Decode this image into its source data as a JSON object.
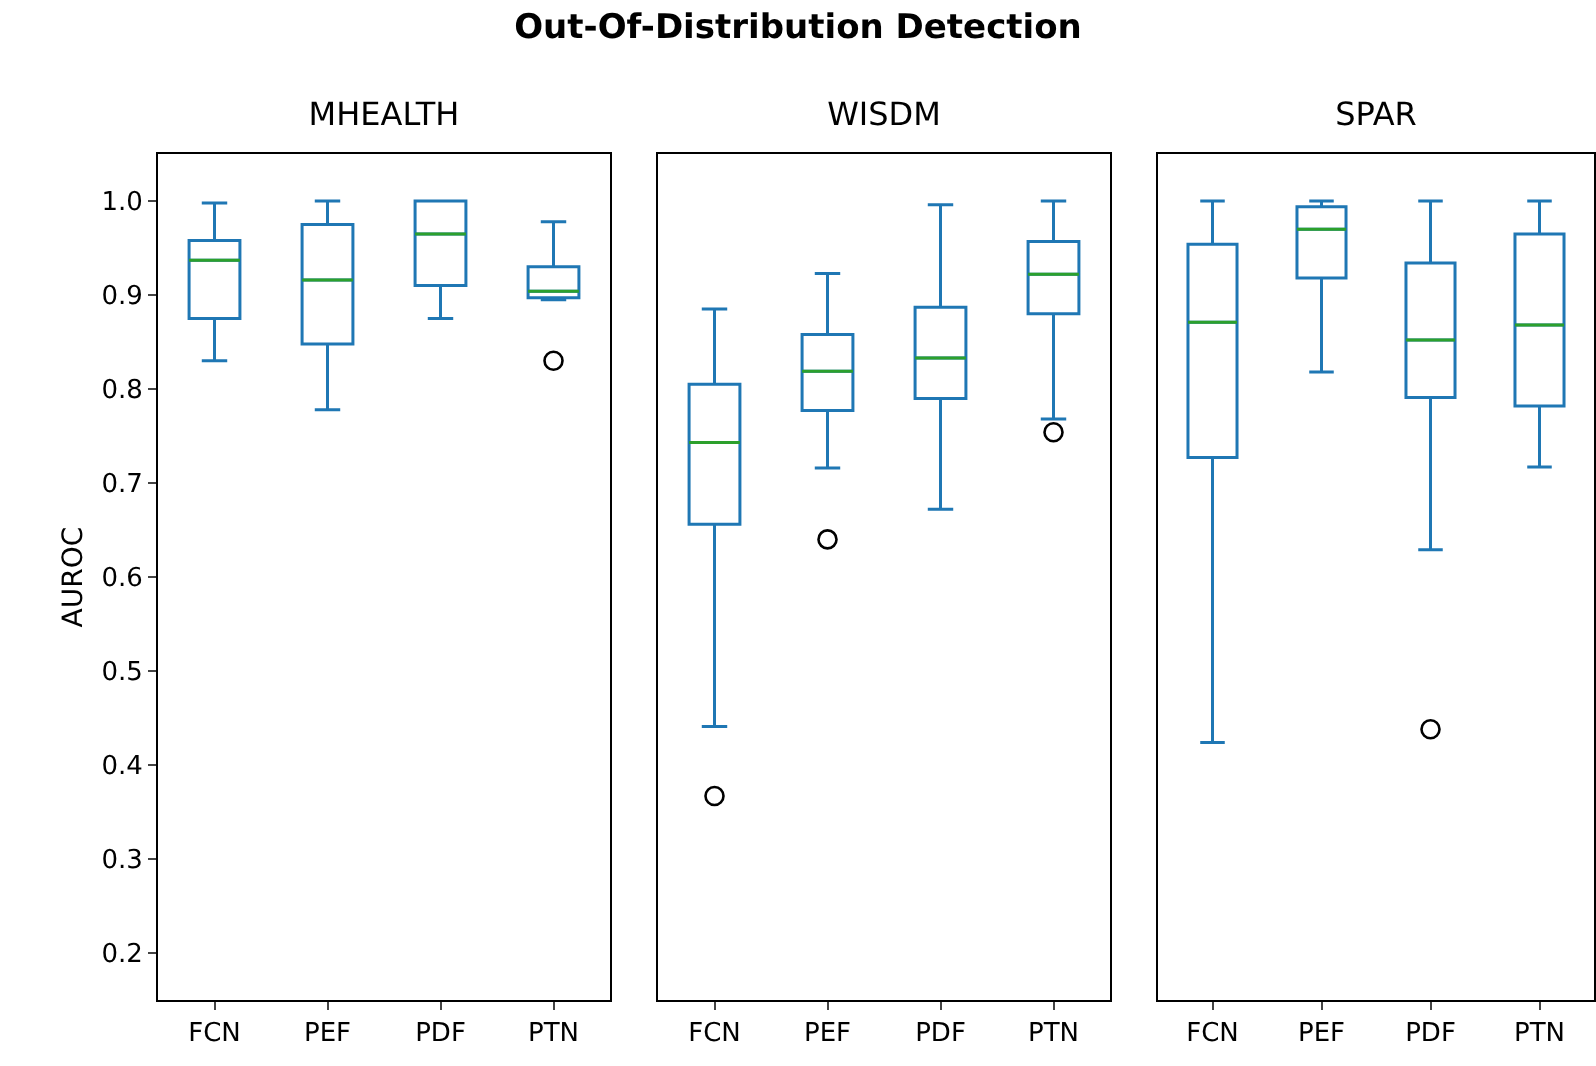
{
  "chart_data": [
    {
      "type": "box",
      "title": "MHEALTH",
      "ylabel": "AUROC",
      "annotations": [
        "Out-Of-Distribution Detection"
      ],
      "categories": [
        "FCN",
        "PEF",
        "PDF",
        "PTN"
      ],
      "color": "#1f77b4",
      "ylim": [
        0.15,
        1.05
      ],
      "yticks": [
        {
          "value": 0.2,
          "label": "0.2"
        },
        {
          "value": 0.3,
          "label": "0.3"
        },
        {
          "value": 0.4,
          "label": "0.4"
        },
        {
          "value": 0.5,
          "label": "0.5"
        },
        {
          "value": 0.6,
          "label": "0.6"
        },
        {
          "value": 0.7,
          "label": "0.7"
        },
        {
          "value": 0.8,
          "label": "0.8"
        },
        {
          "value": 0.9,
          "label": "0.9"
        },
        {
          "value": 1.0,
          "label": "1.0"
        }
      ],
      "boxes": [
        {
          "low": 0.83,
          "q1": 0.875,
          "median": 0.937,
          "q3": 0.958,
          "high": 0.998
        },
        {
          "low": 0.778,
          "q1": 0.848,
          "median": 0.916,
          "q3": 0.975,
          "high": 1.0
        },
        {
          "low": 0.875,
          "q1": 0.91,
          "median": 0.965,
          "q3": 1.0,
          "high": 1.0
        },
        {
          "low": 0.895,
          "q1": 0.897,
          "median": 0.904,
          "q3": 0.93,
          "high": 0.978,
          "outliers": [
            0.83
          ]
        }
      ]
    },
    {
      "type": "box",
      "title": "WISDM",
      "categories": [
        "FCN",
        "PEF",
        "PDF",
        "PTN"
      ],
      "color": "#1f77b4",
      "ylim": [
        0.15,
        1.05
      ],
      "tick_labels": "x",
      "boxes": [
        {
          "low": 0.441,
          "q1": 0.656,
          "median": 0.743,
          "q3": 0.805,
          "high": 0.885,
          "outliers": [
            0.367
          ]
        },
        {
          "low": 0.716,
          "q1": 0.777,
          "median": 0.819,
          "q3": 0.858,
          "high": 0.923,
          "outliers": [
            0.64
          ]
        },
        {
          "low": 0.672,
          "q1": 0.79,
          "median": 0.833,
          "q3": 0.887,
          "high": 0.996
        },
        {
          "low": 0.768,
          "q1": 0.88,
          "median": 0.922,
          "q3": 0.957,
          "high": 1.0,
          "outliers": [
            0.754
          ]
        }
      ]
    },
    {
      "type": "box",
      "title": "SPAR",
      "categories": [
        "FCN",
        "PEF",
        "PDF",
        "PTN"
      ],
      "color": "#1f77b4",
      "ylim": [
        0.15,
        1.05
      ],
      "tick_labels": "x",
      "boxes": [
        {
          "low": 0.424,
          "q1": 0.727,
          "median": 0.871,
          "q3": 0.954,
          "high": 1.0
        },
        {
          "low": 0.818,
          "q1": 0.918,
          "median": 0.97,
          "q3": 0.994,
          "high": 1.0
        },
        {
          "low": 0.629,
          "q1": 0.791,
          "median": 0.852,
          "q3": 0.934,
          "high": 1.0,
          "outliers": [
            0.438
          ]
        },
        {
          "low": 0.717,
          "q1": 0.782,
          "median": 0.868,
          "q3": 0.965,
          "high": 1.0
        }
      ]
    }
  ]
}
